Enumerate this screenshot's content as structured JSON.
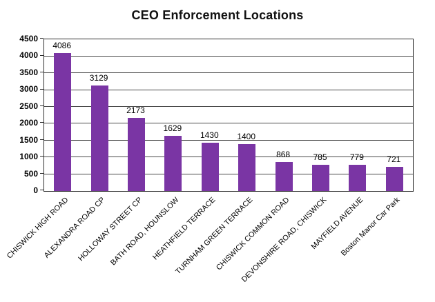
{
  "title": "CEO Enforcement Locations",
  "colors": {
    "bar": "#7a35a4",
    "gridline": "#454545",
    "plot_border": "#2b2b2b",
    "text": "#000000",
    "background": "#ffffff"
  },
  "chart_data": {
    "type": "bar",
    "title": "CEO Enforcement Locations",
    "categories": [
      "CHISWICK HIGH ROAD",
      "ALEXANDRA ROAD CP",
      "HOLLOWAY STREET CP",
      "BATH ROAD, HOUNSLOW",
      "HEATHFIELD TERRACE",
      "TURNHAM GREEN TERRACE",
      "CHISWICK COMMON ROAD",
      "DEVONSHIRE ROAD, CHISWICK",
      "MAYFIELD AVENUE",
      "Boston Manor Car Park"
    ],
    "values": [
      4086,
      3129,
      2173,
      1629,
      1430,
      1400,
      868,
      785,
      779,
      721
    ],
    "data_labels_shown": true,
    "xlabel": "",
    "ylabel": "",
    "ylim": [
      0,
      4500
    ],
    "ytick_step": 500,
    "yticks": [
      0,
      500,
      1000,
      1500,
      2000,
      2500,
      3000,
      3500,
      4000,
      4500
    ],
    "grid": "horizontal",
    "legend": "none",
    "bar_color": "#7a35a4",
    "category_label_rotation_deg": 45
  }
}
